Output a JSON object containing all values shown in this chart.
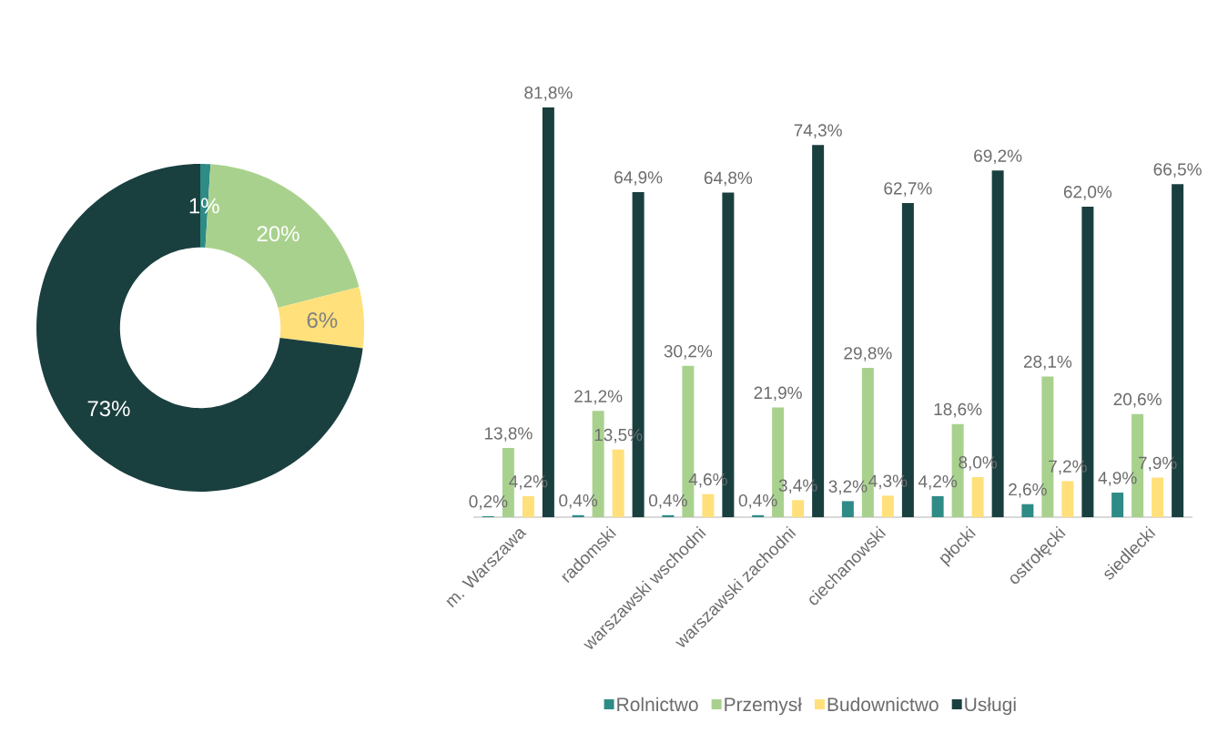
{
  "chart_data": [
    {
      "type": "donut",
      "categories": [
        null,
        null,
        null,
        null
      ],
      "values": [
        1,
        20,
        6,
        73
      ],
      "colors": [
        "#2e8b86",
        "#a9d18e",
        "#ffe07a",
        "#1a3f3f"
      ],
      "value_labels": [
        "1%",
        "20%",
        "6%",
        "73%"
      ]
    },
    {
      "type": "bar",
      "categories": [
        "m. Warszawa",
        "radomski",
        "warszawski wschodni",
        "warszawski zachodni",
        "ciechanowski",
        "płocki",
        "ostrołęcki",
        "siedlecki"
      ],
      "legend": "bottom",
      "series": [
        {
          "name": "Rolnictwo",
          "color": "#2e8b86",
          "values": [
            0.2,
            0.4,
            0.4,
            0.4,
            3.2,
            4.2,
            2.6,
            4.9
          ],
          "value_labels": [
            "0,2%",
            "0,4%",
            "0,4%",
            "0,4%",
            "3,2%",
            "4,2%",
            "2,6%",
            "4,9%"
          ]
        },
        {
          "name": "Przemysł",
          "color": "#a9d18e",
          "values": [
            13.8,
            21.2,
            30.2,
            21.9,
            29.8,
            18.6,
            28.1,
            20.6
          ],
          "value_labels": [
            "13,8%",
            "21,2%",
            "30,2%",
            "21,9%",
            "29,8%",
            "18,6%",
            "28,1%",
            "20,6%"
          ]
        },
        {
          "name": "Budownictwo",
          "color": "#ffe07a",
          "values": [
            4.2,
            13.5,
            4.6,
            3.4,
            4.3,
            8.0,
            7.2,
            7.9
          ],
          "value_labels": [
            "4,2%",
            "13,5%",
            "4,6%",
            "3,4%",
            "4,3%",
            "8,0%",
            "7,2%",
            "7,9%"
          ]
        },
        {
          "name": "Usługi",
          "color": "#1a3f3f",
          "values": [
            81.8,
            64.9,
            64.8,
            74.3,
            62.7,
            69.2,
            62.0,
            66.5
          ],
          "value_labels": [
            "81,8%",
            "64,9%",
            "64,8%",
            "74,3%",
            "62,7%",
            "69,2%",
            "62,0%",
            "66,5%"
          ]
        }
      ]
    }
  ]
}
